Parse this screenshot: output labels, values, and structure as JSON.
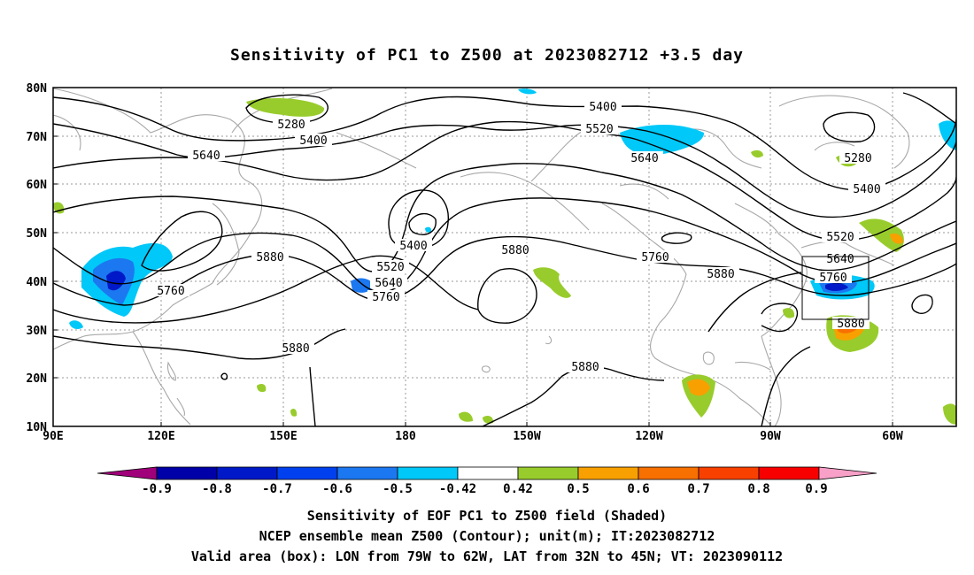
{
  "title": "Sensitivity of PC1 to Z500 at 2023082712 +3.5 day",
  "map": {
    "lon_ticks": [
      "90E",
      "120E",
      "150E",
      "180",
      "150W",
      "120W",
      "90W",
      "60W"
    ],
    "lat_ticks": [
      "80N",
      "70N",
      "60N",
      "50N",
      "40N",
      "30N",
      "20N",
      "10N"
    ],
    "contour_labels": [
      "5280",
      "5400",
      "5400",
      "5520",
      "5640",
      "5640",
      "5400",
      "5520",
      "5640",
      "5760",
      "5760",
      "5880",
      "5880",
      "5880",
      "5760",
      "5880",
      "5280",
      "5400",
      "5520",
      "5640",
      "5760",
      "5880",
      "5880"
    ]
  },
  "colorbar": {
    "labels": [
      "-0.9",
      "-0.8",
      "-0.7",
      "-0.6",
      "-0.5",
      "-0.42",
      "0.42",
      "0.5",
      "0.6",
      "0.7",
      "0.8",
      "0.9"
    ],
    "colors": [
      "#a0007a",
      "#0000a8",
      "#0019c8",
      "#0040ee",
      "#1c78f0",
      "#00c8f8",
      "#ffffff",
      "#98cc2c",
      "#f8a000",
      "#f87000",
      "#f84000",
      "#f80000",
      "#f8a0c8"
    ]
  },
  "captions": {
    "line1": "Sensitivity of EOF PC1 to Z500 field (Shaded)",
    "line2": "NCEP ensemble mean Z500 (Contour); unit(m); IT:2023082712",
    "line3": "Valid area (box): LON from 79W to 62W, LAT from 32N to 45N; VT: 2023090112"
  }
}
